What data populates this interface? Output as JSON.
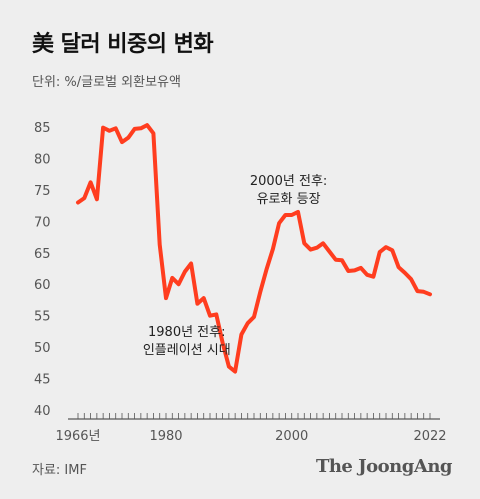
{
  "title": "美 달러 비중의 변화",
  "unit_label": "단위: %/글로벌 외환보유액",
  "source": "자료: IMF",
  "brand": "The JoongAng",
  "colors": {
    "line": "#ff3d1f",
    "background": "#eeeeee",
    "text": "#222222"
  },
  "chart_data": {
    "type": "line",
    "title": "美 달러 비중의 변화",
    "ylabel": "단위: %/글로벌 외환보유액",
    "ylim": [
      40,
      85
    ],
    "xlim": [
      1966,
      2022
    ],
    "y_ticks": [
      40,
      45,
      50,
      55,
      60,
      65,
      70,
      75,
      80,
      85
    ],
    "x_tick_labels": [
      {
        "x": 1966,
        "label": "1966년"
      },
      {
        "x": 1980,
        "label": "1980"
      },
      {
        "x": 2000,
        "label": "2000"
      },
      {
        "x": 2022,
        "label": "2022"
      }
    ],
    "series": [
      {
        "x": [
          1966,
          1967,
          1968,
          1969,
          1970,
          1971,
          1972,
          1973,
          1974,
          1975,
          1976,
          1977,
          1978,
          1979,
          1980,
          1981,
          1982,
          1983,
          1984,
          1985,
          1986,
          1987,
          1988,
          1989,
          1990,
          1991,
          1992,
          1993,
          1994,
          1995,
          1996,
          1997,
          1998,
          1999,
          2000,
          2001,
          2002,
          2003,
          2004,
          2005,
          2006,
          2007,
          2008,
          2009,
          2010,
          2011,
          2012,
          2013,
          2014,
          2015,
          2016,
          2017,
          2018,
          2019,
          2020,
          2021,
          2022
        ],
        "values": [
          73,
          73.7,
          76.2,
          73.5,
          84.9,
          84.4,
          84.8,
          82.6,
          83.3,
          84.7,
          84.8,
          85.3,
          84,
          66.3,
          57.8,
          61,
          60,
          62,
          63.3,
          56.9,
          57.8,
          55,
          55.2,
          50.7,
          46.9,
          46.1,
          52,
          53.8,
          54.8,
          58.8,
          62.4,
          65.6,
          69.7,
          71,
          71,
          71.5,
          66.5,
          65.5,
          65.8,
          66.5,
          65.2,
          63.9,
          63.8,
          62.1,
          62.2,
          62.6,
          61.5,
          61.2,
          65.1,
          65.9,
          65.4,
          62.7,
          61.8,
          60.8,
          58.9,
          58.8,
          58.4
        ]
      }
    ],
    "annotations": [
      {
        "x": 1999.5,
        "y": 75.8,
        "line1": "2000년 전후:",
        "line2": "유로화 등장"
      },
      {
        "x": 1983.3,
        "y": 51.8,
        "line1": "1980년 전후:",
        "line2": "인플레이션 시대"
      }
    ]
  }
}
